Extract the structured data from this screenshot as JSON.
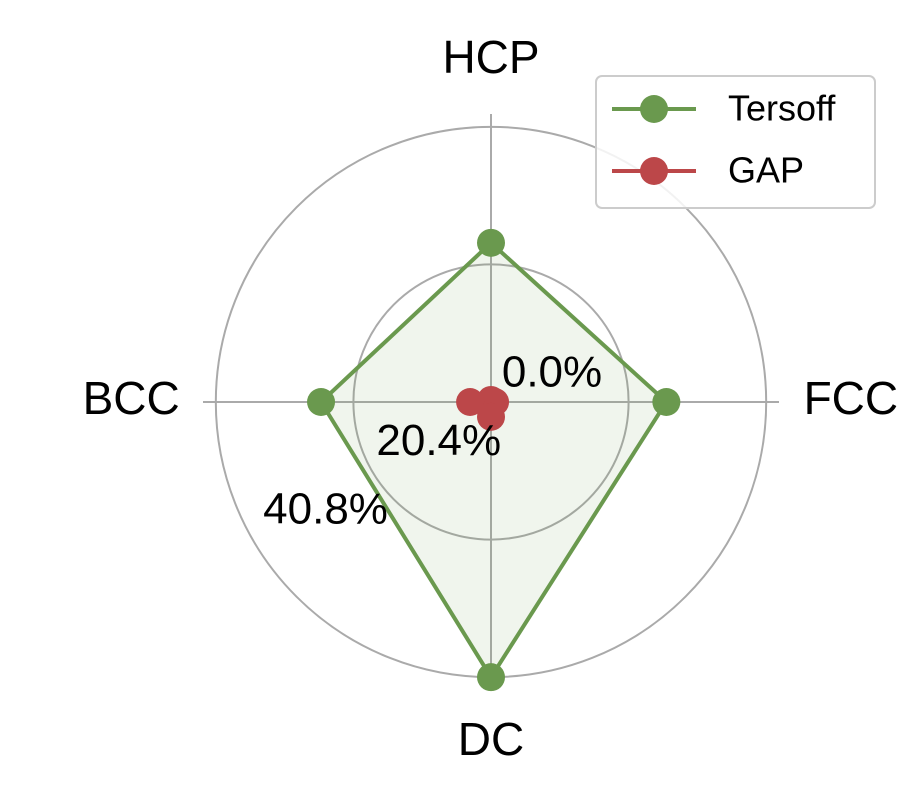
{
  "chart_data": {
    "type": "radar",
    "categories": [
      "FCC",
      "HCP",
      "BCC",
      "DC"
    ],
    "rlim": [
      0,
      42.7
    ],
    "rticks": [
      {
        "value": 0,
        "label": "0.0%"
      },
      {
        "value": 20.4,
        "label": "20.4%"
      },
      {
        "value": 40.8,
        "label": "40.8%"
      }
    ],
    "grid": true,
    "legend": "upper right",
    "series": [
      {
        "name": "Tersoff",
        "color": "#6a994e",
        "values": [
          26.0,
          23.6,
          25.2,
          40.8
        ]
      },
      {
        "name": "GAP",
        "color": "#bc4749",
        "values": [
          0.6,
          0.3,
          3.1,
          2.2
        ]
      }
    ]
  }
}
